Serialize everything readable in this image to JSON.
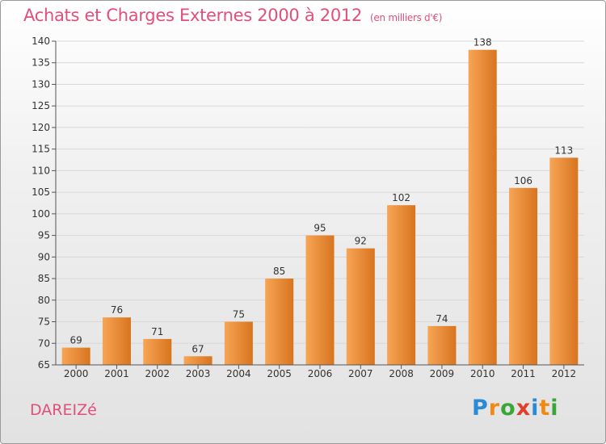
{
  "title": "Achats et Charges Externes 2000 à 2012",
  "subtitle": "(en milliers d'€)",
  "commune": "DAREIZé",
  "logo": {
    "text": "Proxiti",
    "letter_colors": [
      "#2a8ad6",
      "#f08a14",
      "#3aa63a",
      "#e0402a",
      "#2a8ad6",
      "#f08a14",
      "#3aa63a"
    ]
  },
  "colors": {
    "title": "#e0507a",
    "bar_light": "#f7a555",
    "bar_dark": "#d8741f",
    "grid": "#d8d8d8",
    "axis": "#555555"
  },
  "chart_data": {
    "type": "bar",
    "categories": [
      "2000",
      "2001",
      "2002",
      "2003",
      "2004",
      "2005",
      "2006",
      "2007",
      "2008",
      "2009",
      "2010",
      "2011",
      "2012"
    ],
    "values": [
      69,
      76,
      71,
      67,
      75,
      85,
      95,
      92,
      102,
      74,
      138,
      106,
      113
    ],
    "ylim": [
      65,
      140
    ],
    "yticks": [
      65,
      70,
      75,
      80,
      85,
      90,
      95,
      100,
      105,
      110,
      115,
      120,
      125,
      130,
      135,
      140
    ],
    "grid": true,
    "legend": "none"
  }
}
